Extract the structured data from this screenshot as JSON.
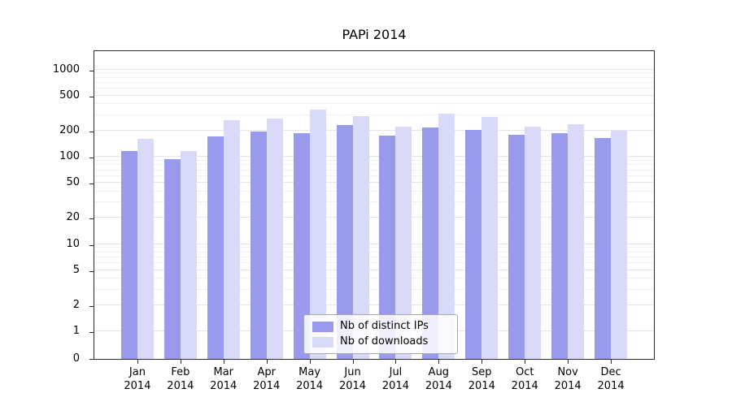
{
  "chart_data": {
    "type": "bar",
    "title": "PAPi 2014",
    "categories": [
      "Jan 2014",
      "Feb 2014",
      "Mar 2014",
      "Apr 2014",
      "May 2014",
      "Jun 2014",
      "Jul 2014",
      "Aug 2014",
      "Sep 2014",
      "Oct 2014",
      "Nov 2014",
      "Dec 2014"
    ],
    "series": [
      {
        "name": "Nb of distinct IPs",
        "color": "#9a9aed",
        "values": [
          115,
          93,
          170,
          195,
          185,
          230,
          175,
          215,
          205,
          180,
          185,
          163
        ]
      },
      {
        "name": "Nb of downloads",
        "color": "#d9d9f8",
        "values": [
          160,
          115,
          260,
          275,
          350,
          290,
          220,
          310,
          285,
          220,
          235,
          200
        ]
      }
    ],
    "yscale": "symlog",
    "yticks": [
      0,
      1,
      2,
      5,
      10,
      20,
      50,
      100,
      200,
      500,
      1000
    ],
    "minor_yticks": [
      3,
      4,
      6,
      7,
      8,
      9,
      30,
      40,
      60,
      70,
      80,
      90,
      300,
      400,
      600,
      700,
      800,
      900
    ],
    "ylim": [
      0,
      1400
    ],
    "grid": true,
    "legend_position": "bottom-center"
  }
}
